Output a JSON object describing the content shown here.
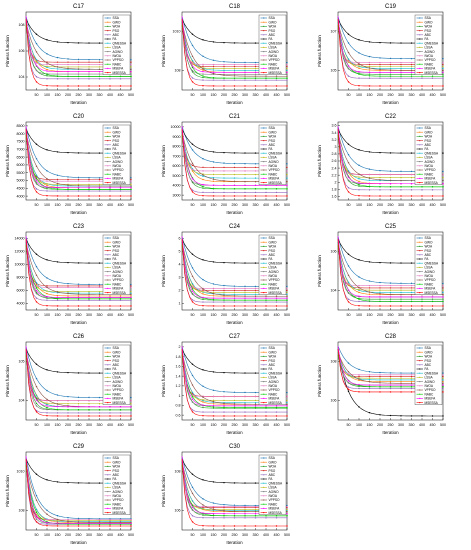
{
  "figure": {
    "legend_entries": [
      "SSA",
      "GWO",
      "WOA",
      "PSO",
      "ABC",
      "FA",
      "QMESSA",
      "LSSA",
      "AGWO",
      "IWOA",
      "VPPSO",
      "NABC",
      "MSEFA",
      "MSESSA"
    ],
    "colors": [
      "#1f77b4",
      "#ff7f0e",
      "#2ca02c",
      "#d62728",
      "#9467bd",
      "#000000",
      "#17becf",
      "#bcbd22",
      "#7f7f7f",
      "#e377c2",
      "#8c564b",
      "#00cc00",
      "#ff00ff",
      "#ff0000"
    ],
    "ylabel": "Fitness function",
    "xlabel": "Iteration",
    "x_ticks": [
      "50",
      "100",
      "150",
      "200",
      "250",
      "300",
      "350",
      "400",
      "450",
      "500"
    ]
  },
  "chart_data": [
    {
      "type": "line",
      "title": "C17",
      "yscale": "log",
      "y_ticks": [
        "10^4",
        "10^6",
        "10^8"
      ],
      "xlim": [
        0,
        500
      ],
      "series_end": [
        2.3,
        1.8,
        1.6,
        2.2,
        1.5,
        3.0,
        1.9,
        2.0,
        1.7,
        2.1,
        1.9,
        1.6,
        1.8,
        1.2
      ]
    },
    {
      "type": "line",
      "title": "C18",
      "yscale": "log",
      "y_ticks": [
        "10^8",
        "10^10"
      ],
      "xlim": [
        0,
        500
      ],
      "series_end": [
        4.8,
        4.3,
        4.0,
        4.6,
        3.9,
        5.8,
        4.4,
        4.5,
        4.2,
        4.7,
        4.1,
        4.0,
        4.3,
        3.6
      ]
    },
    {
      "type": "line",
      "title": "C19",
      "yscale": "log",
      "y_ticks": [
        "10^5",
        "10^7"
      ],
      "xlim": [
        0,
        500
      ],
      "series_end": [
        4.2,
        3.6,
        3.4,
        3.9,
        3.2,
        5.0,
        3.7,
        3.8,
        3.5,
        4.0,
        3.6,
        3.3,
        3.5,
        2.8
      ]
    },
    {
      "type": "line",
      "title": "C20",
      "yscale": "linear",
      "y_ticks": [
        "4000",
        "4500",
        "5000",
        "5500",
        "6000",
        "6500",
        "7000",
        "7500",
        "8000",
        "8500"
      ],
      "xlim": [
        0,
        500
      ],
      "series_end": [
        5300,
        4700,
        4600,
        5200,
        4500,
        6800,
        4800,
        4900,
        4700,
        5100,
        4800,
        4600,
        4700,
        4200
      ]
    },
    {
      "type": "line",
      "title": "C21",
      "yscale": "linear",
      "y_ticks": [
        "3000",
        "4000",
        "5000",
        "6000",
        "7000",
        "8000",
        "9000",
        "10000"
      ],
      "xlim": [
        0,
        500
      ],
      "series_end": [
        3900,
        3400,
        3200,
        3800,
        3100,
        4200,
        3500,
        3600,
        3300,
        3700,
        3400,
        3200,
        3300,
        3000
      ]
    },
    {
      "type": "line",
      "title": "C22",
      "yscale": "linear",
      "y_ticks": [
        "1.6",
        "1.8",
        "2",
        "2.2",
        "2.4",
        "2.6",
        "2.8",
        "3",
        "3.2",
        "3.4",
        "3.6"
      ],
      "xlim": [
        0,
        500
      ],
      "series_end": [
        2.6,
        2.2,
        2.1,
        2.5,
        2.0,
        3.2,
        2.3,
        2.4,
        2.2,
        2.5,
        2.3,
        2.1,
        2.2,
        1.8
      ]
    },
    {
      "type": "line",
      "title": "C23",
      "yscale": "linear",
      "y_ticks": [
        "4000",
        "6000",
        "8000",
        "10000",
        "12000",
        "14000"
      ],
      "xlim": [
        0,
        500
      ],
      "series_end": [
        6000,
        5200,
        5000,
        5900,
        4900,
        7500,
        5400,
        5500,
        5100,
        5800,
        5300,
        5000,
        5100,
        4500
      ]
    },
    {
      "type": "line",
      "title": "C24",
      "yscale": "linear",
      "y_ticks": [
        "1",
        "2",
        "3",
        "4",
        "5",
        "6"
      ],
      "xlim": [
        0,
        500
      ],
      "series_end": [
        2.4,
        1.9,
        1.7,
        2.2,
        1.6,
        3.6,
        2.0,
        2.1,
        1.8,
        2.3,
        1.9,
        1.7,
        1.8,
        1.4
      ]
    },
    {
      "type": "line",
      "title": "C25",
      "yscale": "log",
      "y_ticks": [
        "10^4",
        "10^6"
      ],
      "xlim": [
        0,
        500
      ],
      "series_end": [
        4.3,
        3.8,
        3.6,
        4.1,
        3.5,
        5.2,
        3.9,
        4.0,
        3.7,
        4.2,
        3.8,
        3.5,
        3.7,
        3.3
      ]
    },
    {
      "type": "line",
      "title": "C26",
      "yscale": "log",
      "y_ticks": [
        "10^4",
        "10^5"
      ],
      "xlim": [
        0,
        500
      ],
      "series_end": [
        4.3,
        4.0,
        3.9,
        4.2,
        3.8,
        5.1,
        4.0,
        4.1,
        3.9,
        4.2,
        4.0,
        3.9,
        4.0,
        3.7
      ]
    },
    {
      "type": "line",
      "title": "C27",
      "yscale": "linear",
      "y_ticks": [
        "0.6",
        "0.8",
        "1",
        "1.2",
        "1.4",
        "1.6",
        "1.8",
        "2"
      ],
      "xlim": [
        0,
        500
      ],
      "series_end": [
        0.95,
        0.8,
        0.75,
        0.9,
        0.7,
        1.2,
        0.82,
        0.85,
        0.78,
        0.9,
        0.8,
        0.76,
        0.78,
        0.65
      ]
    },
    {
      "type": "line",
      "title": "C28",
      "yscale": "log",
      "y_ticks": [
        "10^6",
        "10^8"
      ],
      "xlim": [
        0,
        500
      ],
      "series_end": [
        6.0,
        5.5,
        5.2,
        5.8,
        5.1,
        3.5,
        5.6,
        5.7,
        5.3,
        5.9,
        5.4,
        5.2,
        5.3,
        4.9
      ]
    },
    {
      "type": "line",
      "title": "C29",
      "yscale": "log",
      "y_ticks": [
        "10^8",
        "10^10"
      ],
      "xlim": [
        0,
        500
      ],
      "series_end": [
        6.4,
        6.0,
        5.9,
        6.3,
        5.8,
        10.4,
        6.1,
        6.2,
        5.9,
        6.3,
        6.0,
        5.8,
        5.9,
        5.6
      ]
    },
    {
      "type": "line",
      "title": "C30",
      "yscale": "log",
      "y_ticks": [
        "10^6",
        "10^8"
      ],
      "xlim": [
        0,
        500
      ],
      "series_end": [
        7.6,
        7.0,
        6.6,
        7.4,
        6.4,
        9.8,
        7.1,
        7.2,
        6.8,
        7.5,
        7.0,
        6.6,
        6.8,
        5.6
      ]
    }
  ]
}
